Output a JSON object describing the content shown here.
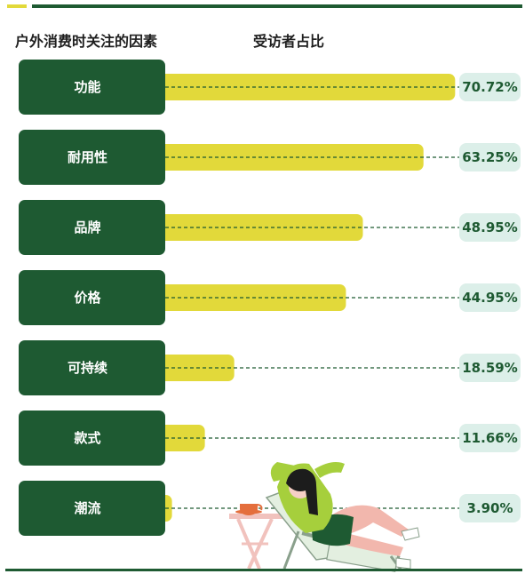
{
  "header": {
    "left_title": "户外消费时关注的因素",
    "right_title": "受访者占比"
  },
  "colors": {
    "green": "#1e5a32",
    "yellow": "#e2d93a",
    "pill": "#dcefe9"
  },
  "chart_data": {
    "type": "bar",
    "orientation": "horizontal",
    "categories": [
      "功能",
      "耐用性",
      "品牌",
      "价格",
      "可持续",
      "款式",
      "潮流"
    ],
    "values": [
      70.72,
      63.25,
      48.95,
      44.95,
      18.59,
      11.66,
      3.9
    ],
    "value_labels": [
      "70.72%",
      "63.25%",
      "48.95%",
      "44.95%",
      "18.59%",
      "11.66%",
      "3.90%"
    ],
    "xlim": [
      0,
      100
    ],
    "grid": false,
    "legend": "none"
  }
}
